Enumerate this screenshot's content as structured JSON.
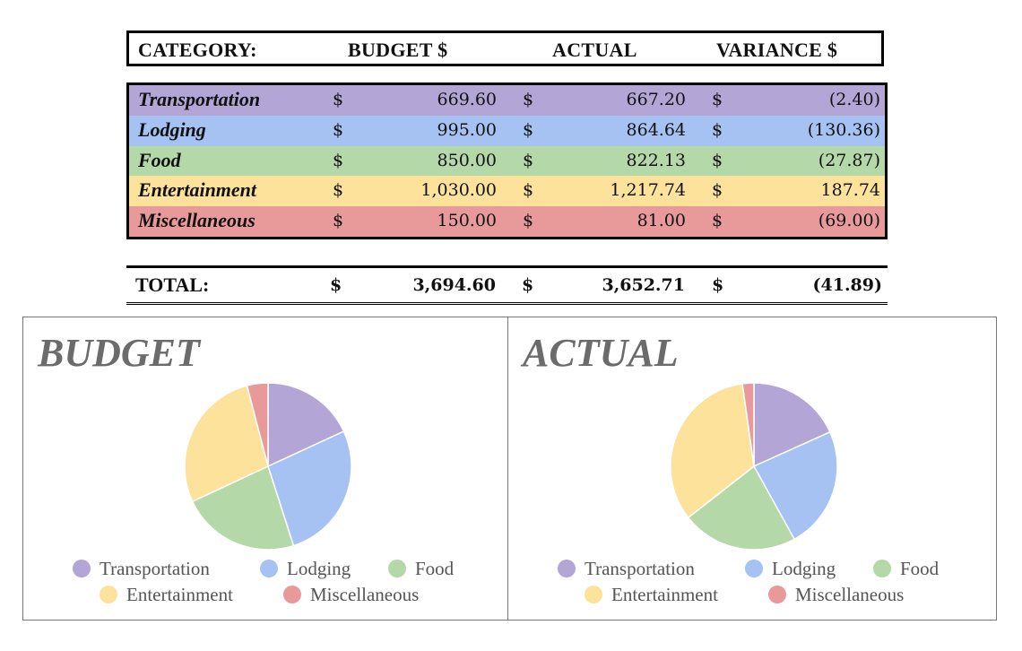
{
  "table": {
    "header": {
      "category": "CATEGORY:",
      "budget": "BUDGET $",
      "actual": "ACTUAL",
      "variance": "VARIANCE $"
    },
    "rows": [
      {
        "name": "Transportation",
        "budget": "669.60",
        "actual": "667.20",
        "variance": "(2.40)",
        "color": "#b3a6d6"
      },
      {
        "name": "Lodging",
        "budget": "995.00",
        "actual": "864.64",
        "variance": "(130.36)",
        "color": "#a5c2f2"
      },
      {
        "name": "Food",
        "budget": "850.00",
        "actual": "822.13",
        "variance": "(27.87)",
        "color": "#b5d8a8"
      },
      {
        "name": "Entertainment",
        "budget": "1,030.00",
        "actual": "1,217.74",
        "variance": "187.74",
        "color": "#fde29c"
      },
      {
        "name": "Miscellaneous",
        "budget": "150.00",
        "actual": "81.00",
        "variance": "(69.00)",
        "color": "#e89a9a"
      }
    ],
    "currency": "$",
    "total": {
      "label": "TOTAL:",
      "budget": "3,694.60",
      "actual": "3,652.71",
      "variance": "(41.89)"
    }
  },
  "chart_data": [
    {
      "type": "pie",
      "title": "BUDGET",
      "categories": [
        "Transportation",
        "Lodging",
        "Food",
        "Entertainment",
        "Miscellaneous"
      ],
      "values": [
        669.6,
        995.0,
        850.0,
        1030.0,
        150.0
      ],
      "colors": [
        "#b3a6d6",
        "#a5c2f2",
        "#b5d8a8",
        "#fde29c",
        "#e89a9a"
      ],
      "legend": "bottom"
    },
    {
      "type": "pie",
      "title": "ACTUAL",
      "categories": [
        "Transportation",
        "Lodging",
        "Food",
        "Entertainment",
        "Miscellaneous"
      ],
      "values": [
        667.2,
        864.64,
        822.13,
        1217.74,
        81.0
      ],
      "colors": [
        "#b3a6d6",
        "#a5c2f2",
        "#b5d8a8",
        "#fde29c",
        "#e89a9a"
      ],
      "legend": "bottom"
    }
  ]
}
